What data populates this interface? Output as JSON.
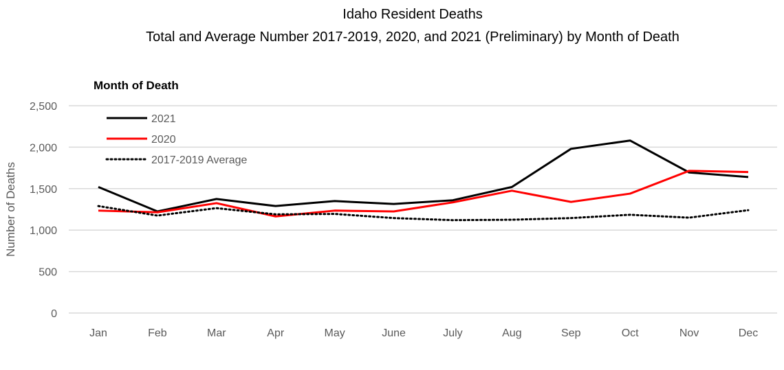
{
  "chart_data": {
    "type": "line",
    "title": "Idaho Resident Deaths",
    "subtitle": "Total and Average Number 2017-2019, 2020, and 2021 (Preliminary) by Month of Death",
    "chart_label": "Month of Death",
    "xlabel": "",
    "ylabel": "Number of Deaths",
    "ylim": [
      0,
      2500
    ],
    "yticks": [
      0,
      500,
      1000,
      1500,
      2000,
      2500
    ],
    "ytick_labels": [
      "0",
      "500",
      "1,000",
      "1,500",
      "2,000",
      "2,500"
    ],
    "grid": true,
    "legend": "top-left",
    "categories": [
      "Jan",
      "Feb",
      "Mar",
      "Apr",
      "May",
      "June",
      "July",
      "Aug",
      "Sep",
      "Oct",
      "Nov",
      "Dec"
    ],
    "series": [
      {
        "name": "2021",
        "color": "#000000",
        "style": "solid",
        "values": [
          1520,
          1225,
          1375,
          1290,
          1350,
          1315,
          1360,
          1520,
          1980,
          2080,
          1695,
          1640
        ]
      },
      {
        "name": "2020",
        "color": "#ff0000",
        "style": "solid",
        "values": [
          1235,
          1215,
          1325,
          1165,
          1235,
          1225,
          1335,
          1475,
          1340,
          1440,
          1715,
          1700
        ]
      },
      {
        "name": "2017-2019 Average",
        "color": "#000000",
        "style": "dotted",
        "values": [
          1290,
          1175,
          1265,
          1190,
          1195,
          1145,
          1120,
          1125,
          1145,
          1185,
          1150,
          1240
        ]
      }
    ]
  }
}
